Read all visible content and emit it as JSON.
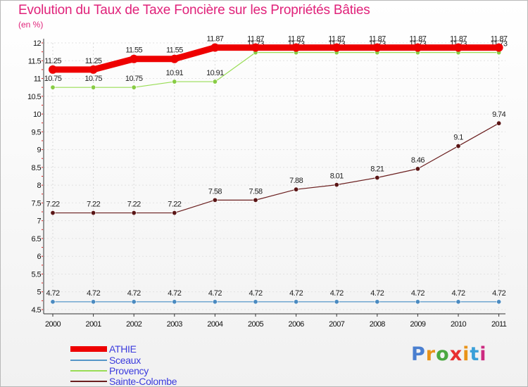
{
  "title": "Evolution du Taux de Taxe Foncière sur les Propriétés Bâties",
  "subtitle": "(en %)",
  "chart_data": {
    "type": "line",
    "title": "Evolution du Taux de Taxe Foncière sur les Propriétés Bâties",
    "ylabel": "(en %)",
    "xlabel": "",
    "ylim": [
      4.5,
      12
    ],
    "yticks": [
      "4.5",
      "5",
      "5.5",
      "6",
      "6.5",
      "7",
      "7.5",
      "8",
      "8.5",
      "9",
      "9.5",
      "10",
      "10.5",
      "11",
      "11.5",
      "12"
    ],
    "categories": [
      "2000",
      "2001",
      "2002",
      "2003",
      "2004",
      "2005",
      "2006",
      "2007",
      "2008",
      "2009",
      "2010",
      "2011"
    ],
    "series": [
      {
        "name": "Sceaux",
        "color": "#5596c8",
        "values": [
          4.72,
          4.72,
          4.72,
          4.72,
          4.72,
          4.72,
          4.72,
          4.72,
          4.72,
          4.72,
          4.72,
          4.72
        ],
        "labels": [
          "4.72",
          "4.72",
          "4.72",
          "4.72",
          "4.72",
          "4.72",
          "4.72",
          "4.72",
          "4.72",
          "4.72",
          "4.72",
          "4.72"
        ]
      },
      {
        "name": "Sainte-Colombe",
        "color": "#6b1f1f",
        "values": [
          7.22,
          7.22,
          7.22,
          7.22,
          7.58,
          7.58,
          7.88,
          8.01,
          8.21,
          8.46,
          9.1,
          9.74
        ],
        "labels": [
          "7.22",
          "7.22",
          "7.22",
          "7.22",
          "7.58",
          "7.58",
          "7.88",
          "8.01",
          "8.21",
          "8.46",
          "9.1",
          "9.74"
        ]
      },
      {
        "name": "Provency",
        "color": "#99dd55",
        "values": [
          10.75,
          10.75,
          10.75,
          10.91,
          10.91,
          11.73,
          11.73,
          11.73,
          11.73,
          11.73,
          11.73,
          11.73
        ],
        "labels": [
          "10.75",
          "10.75",
          "10.75",
          "10.91",
          "10.91",
          "11.73",
          "11.73",
          "11.73",
          "11.73",
          "11.73",
          "11.73",
          "11.73"
        ]
      },
      {
        "name": "ATHIE",
        "color": "#ee0000",
        "values": [
          11.25,
          11.25,
          11.55,
          11.55,
          11.87,
          11.87,
          11.87,
          11.87,
          11.87,
          11.87,
          11.87,
          11.87
        ],
        "labels": [
          "11.25",
          "11.25",
          "11.55",
          "11.55",
          "11.87",
          "11.87",
          "11.87",
          "11.87",
          "11.87",
          "11.87",
          "11.87",
          "11.87"
        ]
      }
    ],
    "legend": [
      "ATHIE",
      "Sceaux",
      "Provency",
      "Sainte-Colombe"
    ],
    "legend_position": "bottom-left"
  },
  "legend_colors": {
    "ATHIE": "#ee0000",
    "Sceaux": "#5596c8",
    "Provency": "#99dd55",
    "Sainte-Colombe": "#6b1f1f"
  },
  "logo": {
    "letters": [
      "P",
      "r",
      "o",
      "x",
      "i",
      "t",
      "i"
    ],
    "colors": [
      "#4a7fd0",
      "#e8931a",
      "#4aa840",
      "#e83030",
      "#e8931a",
      "#3aa0d8",
      "#cc2a80"
    ]
  }
}
